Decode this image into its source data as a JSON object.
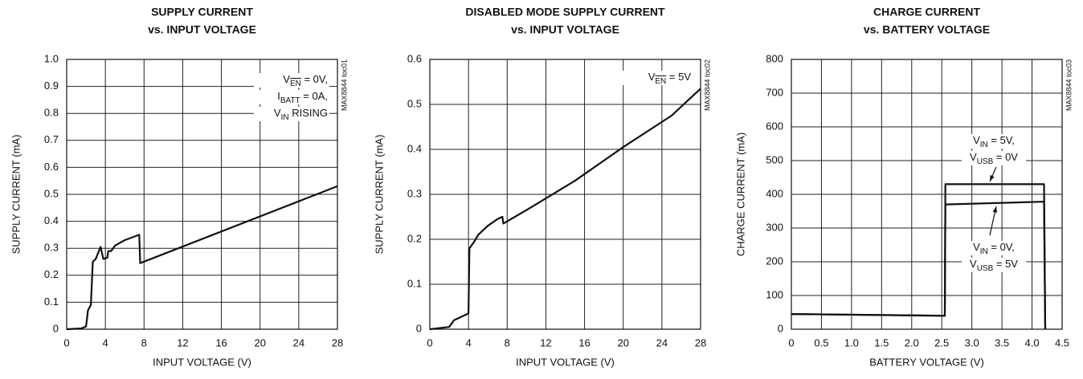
{
  "chart_data": [
    {
      "type": "line",
      "title": [
        "SUPPLY CURRENT",
        "vs. INPUT VOLTAGE"
      ],
      "xlabel": "INPUT VOLTAGE (V)",
      "ylabel": "SUPPLY CURRENT (mA)",
      "side_note": "MAX8844 toc01",
      "xlim": [
        0,
        28
      ],
      "xticks": [
        0,
        4,
        8,
        12,
        16,
        20,
        24,
        28
      ],
      "ylim": [
        0,
        1
      ],
      "yticks": [
        0,
        0.1,
        0.2,
        0.3,
        0.4,
        0.5,
        0.6,
        0.7,
        0.8,
        0.9,
        {
          "value": 1,
          "label": "1.0"
        }
      ],
      "grid": true,
      "annotations": [
        [
          [
            {
              "t": "V"
            },
            {
              "t": "EN",
              "sub": true,
              "over": true
            },
            {
              "t": " = 0V,"
            }
          ],
          [
            {
              "t": "I"
            },
            {
              "t": "BATT",
              "sub": true
            },
            {
              "t": " = 0A,"
            }
          ],
          [
            {
              "t": "V"
            },
            {
              "t": "IN",
              "sub": true
            },
            {
              "t": " RISING"
            }
          ]
        ]
      ],
      "series": [
        {
          "color": "#111111",
          "x": [
            0,
            1.5,
            2,
            2.2,
            2.5,
            2.7,
            3,
            3.5,
            3.8,
            4.2,
            4.3,
            4.6,
            5,
            6,
            7.5,
            7.6,
            28
          ],
          "values": [
            0,
            0.003,
            0.01,
            0.07,
            0.09,
            0.25,
            0.26,
            0.305,
            0.26,
            0.265,
            0.29,
            0.29,
            0.31,
            0.33,
            0.35,
            0.245,
            0.53
          ]
        }
      ]
    },
    {
      "type": "line",
      "title": [
        "DISABLED MODE SUPPLY CURRENT",
        "vs. INPUT VOLTAGE"
      ],
      "xlabel": "INPUT VOLTAGE (V)",
      "ylabel": "SUPPLY CURRENT (mA)",
      "side_note": "MAX8844 toc02",
      "xlim": [
        0,
        28
      ],
      "xticks": [
        0,
        4,
        8,
        12,
        16,
        20,
        24,
        28
      ],
      "ylim": [
        0,
        0.6
      ],
      "yticks": [
        0,
        0.1,
        0.2,
        0.3,
        0.4,
        0.5,
        0.6
      ],
      "grid": true,
      "annotations": [
        [
          [
            {
              "t": "V"
            },
            {
              "t": "EN",
              "sub": true,
              "over": true
            },
            {
              "t": " = 5V"
            }
          ]
        ]
      ],
      "series": [
        {
          "color": "#111111",
          "x": [
            0,
            2,
            2.5,
            3,
            4,
            4.1,
            4.6,
            5,
            6,
            7,
            7.5,
            7.6,
            10,
            15,
            20,
            25,
            28
          ],
          "values": [
            0,
            0.005,
            0.02,
            0.025,
            0.035,
            0.18,
            0.195,
            0.21,
            0.23,
            0.245,
            0.25,
            0.235,
            0.265,
            0.33,
            0.405,
            0.475,
            0.535
          ]
        }
      ]
    },
    {
      "type": "line",
      "title": [
        "CHARGE CURRENT",
        "vs. BATTERY VOLTAGE"
      ],
      "xlabel": "BATTERY VOLTAGE (V)",
      "ylabel": "CHARGE CURRENT (mA)",
      "side_note": "MAX8844 toc03",
      "xlim": [
        0,
        4.5
      ],
      "xticks": [
        0,
        0.5,
        {
          "value": 1,
          "label": "1.0"
        },
        1.5,
        {
          "value": 2,
          "label": "2.0"
        },
        2.5,
        {
          "value": 3,
          "label": "3.0"
        },
        3.5,
        {
          "value": 4,
          "label": "4.0"
        },
        4.5
      ],
      "ylim": [
        0,
        800
      ],
      "yticks": [
        0,
        100,
        200,
        300,
        400,
        500,
        600,
        700,
        800
      ],
      "grid": true,
      "annotations": [
        [
          [
            {
              "t": "V"
            },
            {
              "t": "IN",
              "sub": true
            },
            {
              "t": " = 5V,"
            }
          ],
          [
            {
              "t": "V"
            },
            {
              "t": "USB",
              "sub": true
            },
            {
              "t": " = 0V"
            }
          ]
        ],
        [
          [
            {
              "t": "V"
            },
            {
              "t": "IN",
              "sub": true
            },
            {
              "t": " = 0V,"
            }
          ],
          [
            {
              "t": "V"
            },
            {
              "t": "USB",
              "sub": true
            },
            {
              "t": " = 5V"
            }
          ]
        ]
      ],
      "series": [
        {
          "color": "#111111",
          "x": [
            0,
            2.5,
            2.55,
            2.56,
            4.2,
            4.22
          ],
          "values": [
            45,
            40,
            40,
            430,
            430,
            0
          ]
        },
        {
          "color": "#111111",
          "x": [
            0,
            2.5,
            2.55,
            2.56,
            4.2,
            4.22
          ],
          "values": [
            45,
            40,
            40,
            370,
            378,
            0
          ]
        }
      ]
    }
  ]
}
